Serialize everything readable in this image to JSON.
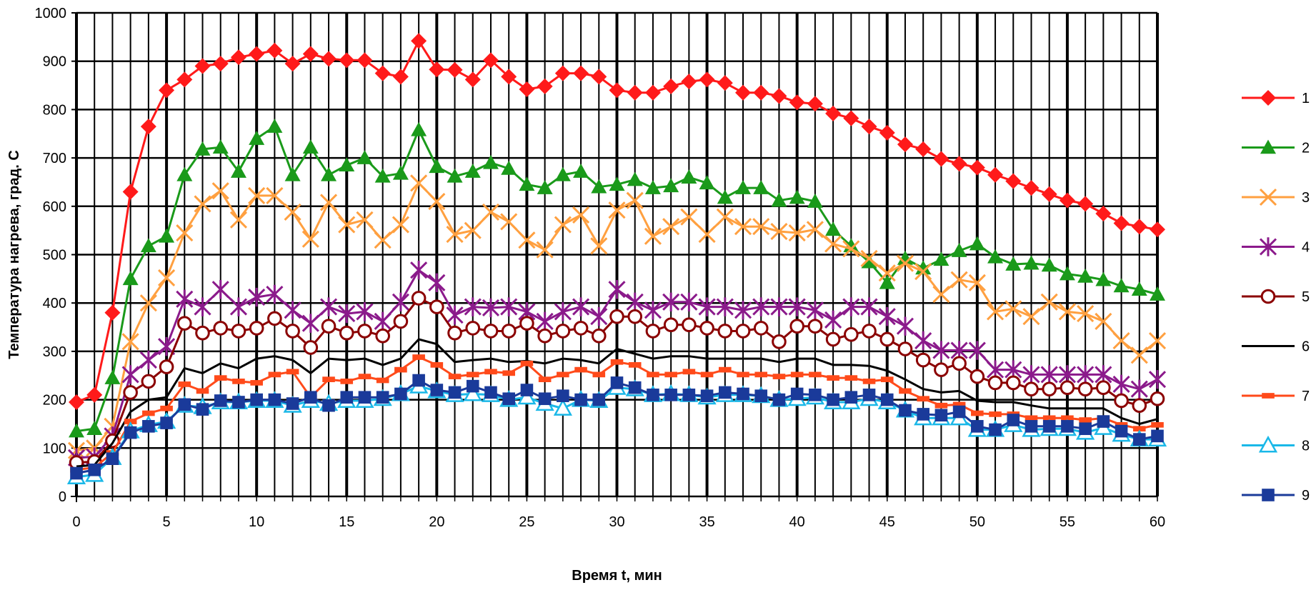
{
  "chart_data": {
    "type": "line",
    "xlabel": "Время t, мин",
    "ylabel": "Температура нагрева, град. С",
    "xlim": [
      0,
      60
    ],
    "ylim": [
      0,
      1000
    ],
    "xticks": [
      0,
      5,
      10,
      15,
      20,
      25,
      30,
      35,
      40,
      45,
      50,
      55,
      60
    ],
    "yticks": [
      0,
      100,
      200,
      300,
      400,
      500,
      600,
      700,
      800,
      900,
      1000
    ],
    "grid": true,
    "legend_position": "right",
    "x": [
      0,
      1,
      2,
      3,
      4,
      5,
      6,
      7,
      8,
      9,
      10,
      11,
      12,
      13,
      14,
      15,
      16,
      17,
      18,
      19,
      20,
      21,
      22,
      23,
      24,
      25,
      26,
      27,
      28,
      29,
      30,
      31,
      32,
      33,
      34,
      35,
      36,
      37,
      38,
      39,
      40,
      41,
      42,
      43,
      44,
      45,
      46,
      47,
      48,
      49,
      50,
      51,
      52,
      53,
      54,
      55,
      56,
      57,
      58,
      59,
      60
    ],
    "series": [
      {
        "name": "1",
        "color": "#ff1a1a",
        "marker": "diamond",
        "values": [
          195,
          210,
          380,
          630,
          765,
          840,
          862,
          890,
          895,
          908,
          915,
          922,
          895,
          915,
          905,
          902,
          902,
          875,
          868,
          942,
          883,
          882,
          862,
          902,
          868,
          842,
          848,
          875,
          875,
          868,
          840,
          835,
          835,
          848,
          858,
          862,
          855,
          835,
          835,
          828,
          815,
          812,
          792,
          782,
          765,
          752,
          728,
          718,
          698,
          688,
          680,
          665,
          652,
          638,
          625,
          612,
          605,
          585,
          565,
          558,
          552
        ]
      },
      {
        "name": "2",
        "color": "#1a9a1a",
        "marker": "triangle",
        "values": [
          135,
          140,
          245,
          450,
          518,
          538,
          665,
          718,
          722,
          672,
          740,
          765,
          665,
          722,
          665,
          685,
          700,
          662,
          668,
          758,
          682,
          662,
          672,
          690,
          678,
          645,
          638,
          665,
          672,
          640,
          645,
          655,
          638,
          642,
          660,
          648,
          618,
          638,
          638,
          612,
          618,
          610,
          552,
          518,
          485,
          442,
          492,
          472,
          490,
          508,
          522,
          495,
          480,
          482,
          478,
          460,
          455,
          448,
          435,
          428,
          418
        ]
      },
      {
        "name": "3",
        "color": "#ffa040",
        "marker": "x",
        "values": [
          95,
          100,
          145,
          320,
          400,
          452,
          545,
          605,
          632,
          572,
          622,
          622,
          588,
          532,
          608,
          562,
          572,
          530,
          562,
          648,
          610,
          542,
          550,
          588,
          568,
          530,
          510,
          562,
          582,
          518,
          592,
          612,
          538,
          558,
          578,
          542,
          578,
          558,
          558,
          548,
          545,
          552,
          522,
          512,
          492,
          462,
          482,
          465,
          418,
          448,
          442,
          382,
          388,
          372,
          402,
          382,
          378,
          362,
          322,
          292,
          322
        ]
      },
      {
        "name": "4",
        "color": "#8b1a8b",
        "marker": "star",
        "values": [
          80,
          82,
          125,
          252,
          282,
          310,
          408,
          392,
          428,
          392,
          412,
          418,
          385,
          358,
          392,
          378,
          382,
          362,
          402,
          468,
          442,
          375,
          392,
          390,
          392,
          382,
          362,
          382,
          392,
          372,
          428,
          402,
          385,
          402,
          402,
          392,
          392,
          385,
          392,
          392,
          392,
          385,
          365,
          392,
          392,
          372,
          352,
          322,
          302,
          302,
          302,
          262,
          262,
          252,
          252,
          252,
          252,
          252,
          232,
          222,
          242
        ]
      },
      {
        "name": "5",
        "color": "#8b0000",
        "marker": "circle",
        "values": [
          70,
          72,
          115,
          215,
          238,
          268,
          358,
          338,
          348,
          342,
          348,
          368,
          342,
          308,
          352,
          338,
          342,
          332,
          362,
          410,
          392,
          338,
          348,
          342,
          342,
          358,
          332,
          342,
          348,
          332,
          372,
          372,
          342,
          355,
          355,
          348,
          342,
          342,
          348,
          320,
          352,
          352,
          325,
          335,
          342,
          325,
          305,
          282,
          262,
          275,
          248,
          235,
          235,
          222,
          222,
          225,
          222,
          225,
          198,
          188,
          202
        ]
      },
      {
        "name": "6",
        "color": "#000000",
        "marker": "none",
        "values": [
          62,
          65,
          110,
          175,
          200,
          205,
          265,
          255,
          275,
          265,
          285,
          290,
          282,
          255,
          285,
          282,
          285,
          272,
          285,
          325,
          315,
          278,
          282,
          285,
          278,
          280,
          275,
          285,
          282,
          275,
          305,
          295,
          285,
          290,
          290,
          285,
          285,
          285,
          285,
          278,
          285,
          285,
          272,
          272,
          270,
          260,
          242,
          222,
          215,
          218,
          198,
          195,
          195,
          188,
          182,
          182,
          182,
          182,
          162,
          150,
          160
        ]
      },
      {
        "name": "7",
        "color": "#ff4a1a",
        "marker": "dash",
        "values": [
          55,
          60,
          90,
          155,
          172,
          182,
          232,
          218,
          245,
          238,
          235,
          252,
          258,
          205,
          242,
          238,
          248,
          240,
          262,
          288,
          272,
          248,
          252,
          258,
          255,
          275,
          242,
          252,
          262,
          252,
          278,
          272,
          252,
          252,
          258,
          252,
          262,
          252,
          252,
          248,
          252,
          252,
          245,
          245,
          238,
          242,
          218,
          202,
          188,
          190,
          172,
          170,
          170,
          162,
          162,
          162,
          158,
          162,
          148,
          140,
          148
        ]
      },
      {
        "name": "8",
        "color": "#1ab8e8",
        "marker": "triangle-open",
        "values": [
          40,
          45,
          80,
          135,
          148,
          155,
          188,
          185,
          195,
          195,
          198,
          198,
          188,
          198,
          192,
          198,
          198,
          202,
          212,
          228,
          218,
          210,
          212,
          210,
          200,
          205,
          192,
          182,
          200,
          198,
          225,
          222,
          210,
          212,
          210,
          205,
          210,
          210,
          208,
          200,
          202,
          205,
          195,
          195,
          202,
          195,
          178,
          162,
          162,
          162,
          138,
          138,
          148,
          138,
          140,
          140,
          132,
          142,
          128,
          118,
          118
        ]
      },
      {
        "name": "9",
        "color": "#1a3a9a",
        "marker": "square",
        "values": [
          48,
          55,
          78,
          132,
          145,
          152,
          190,
          180,
          198,
          195,
          200,
          200,
          192,
          205,
          188,
          205,
          205,
          205,
          212,
          240,
          220,
          215,
          228,
          215,
          202,
          220,
          202,
          208,
          200,
          200,
          235,
          225,
          210,
          210,
          210,
          208,
          215,
          212,
          208,
          200,
          212,
          210,
          200,
          205,
          210,
          200,
          178,
          170,
          168,
          175,
          145,
          138,
          158,
          145,
          145,
          145,
          140,
          155,
          135,
          118,
          125
        ]
      }
    ]
  }
}
